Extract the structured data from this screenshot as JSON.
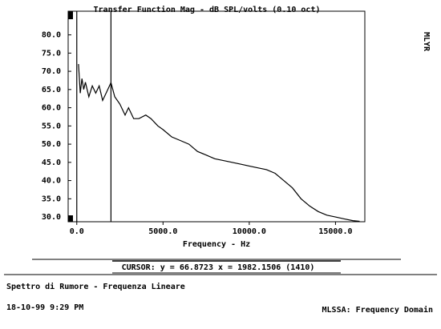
{
  "chart_data": {
    "type": "line",
    "title": "Transfer Function Mag - dB SPL/volts (0.10 oct)",
    "side_label": "MLYR",
    "xlabel": "Frequency - Hz",
    "x": [
      100,
      200,
      300,
      400,
      500,
      700,
      900,
      1100,
      1300,
      1500,
      1700,
      1982.1506,
      2200,
      2500,
      2800,
      3000,
      3300,
      3600,
      4000,
      4300,
      4700,
      5000,
      5500,
      6000,
      6500,
      7000,
      7500,
      8000,
      8500,
      9000,
      9500,
      10000,
      10500,
      11000,
      11500,
      12000,
      12500,
      13000,
      13500,
      14000,
      14500,
      15000,
      15500,
      16000,
      16400
    ],
    "values": [
      72,
      64,
      68,
      65,
      67,
      63,
      66,
      64,
      66,
      62,
      64,
      66.8723,
      63,
      61,
      58,
      60,
      57,
      57,
      58,
      57,
      55,
      54,
      52,
      51,
      50,
      48,
      47,
      46,
      45.5,
      45,
      44.5,
      44,
      43.5,
      43,
      42,
      40,
      38,
      35,
      33,
      31.5,
      30.5,
      30,
      29.5,
      29,
      28.8
    ],
    "color": "#000000",
    "xlim": [
      -500,
      16700
    ],
    "ylim": [
      28.7,
      86.5
    ],
    "xticks": [
      {
        "value": 0,
        "label": "0.0"
      },
      {
        "value": 5000,
        "label": "5000.0"
      },
      {
        "value": 10000,
        "label": "10000.0"
      },
      {
        "value": 15000,
        "label": "15000.0"
      }
    ],
    "yticks": [
      {
        "value": 30,
        "label": "30.0"
      },
      {
        "value": 35,
        "label": "35.0"
      },
      {
        "value": 40,
        "label": "40.0"
      },
      {
        "value": 45,
        "label": "45.0"
      },
      {
        "value": 50,
        "label": "50.0"
      },
      {
        "value": 55,
        "label": "55.0"
      },
      {
        "value": 60,
        "label": "60.0"
      },
      {
        "value": 65,
        "label": "65.0"
      },
      {
        "value": 70,
        "label": "70.0"
      },
      {
        "value": 75,
        "label": "75.0"
      },
      {
        "value": 80,
        "label": "80.0"
      }
    ],
    "cursor_x": 1982.1506,
    "cursor_text": "CURSOR: y = 66.8723 x = 1982.1506 (1410)",
    "footer_title": "Spettro di Rumore - Frequenza Lineare",
    "footer_date": "18-10-99 9:29 PM",
    "footer_app": "MLSSA: Frequency Domain"
  }
}
